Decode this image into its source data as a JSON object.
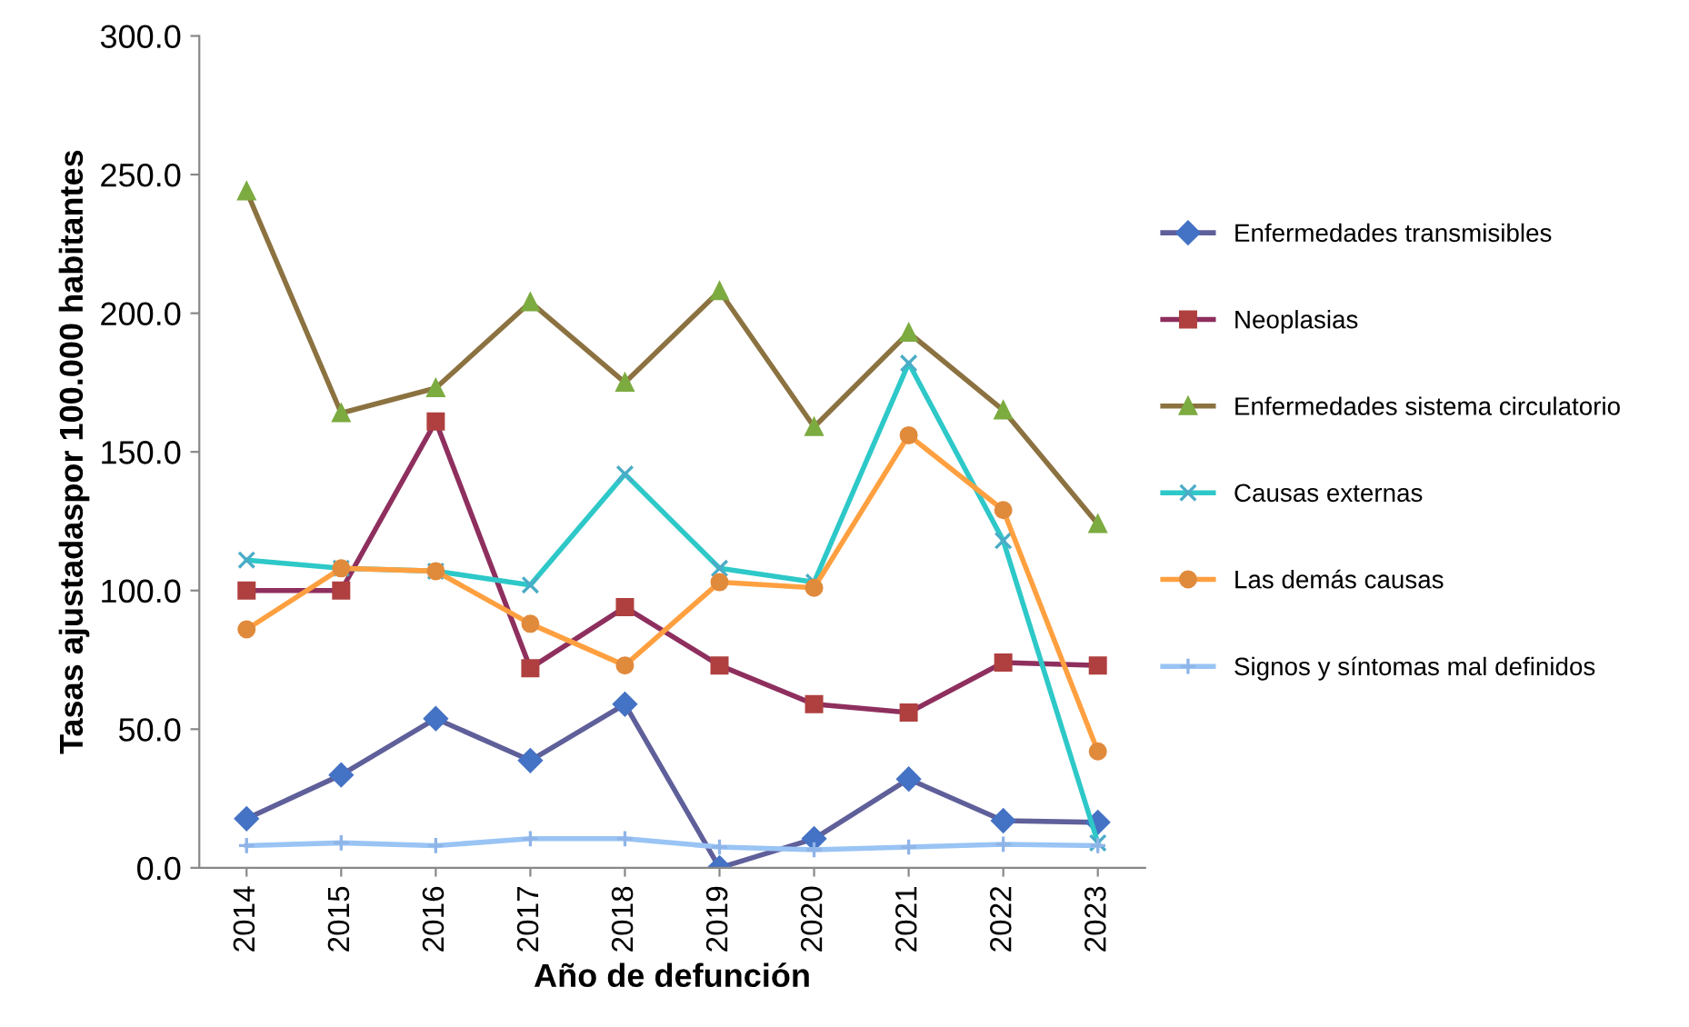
{
  "chart_data": {
    "type": "line",
    "xlabel": "Año de defunción",
    "ylabel": "Tasas ajustadaspor 100.000 habitantes",
    "categories": [
      "2014",
      "2015",
      "2016",
      "2017",
      "2018",
      "2019",
      "2020",
      "2021",
      "2022",
      "2023"
    ],
    "ylim": [
      0,
      300
    ],
    "yticks": [
      {
        "value": 0,
        "label": "0.0"
      },
      {
        "value": 50,
        "label": "50.0"
      },
      {
        "value": 100,
        "label": "100.0"
      },
      {
        "value": 150,
        "label": "150.0"
      },
      {
        "value": 200,
        "label": "200.0"
      },
      {
        "value": 250,
        "label": "250.0"
      },
      {
        "value": 300,
        "label": "300.0"
      }
    ],
    "grid": false,
    "legend": "right",
    "line_style": "solid",
    "series": [
      {
        "name": "Enfermedades transmisibles",
        "color": "#5f5f9a",
        "marker": "diamond",
        "values": [
          17.7,
          33.5,
          53.8,
          38.7,
          59,
          0,
          10.5,
          32,
          17,
          16.4
        ]
      },
      {
        "name": "Neoplasias",
        "color": "#8e2f5e",
        "marker": "square",
        "values": [
          100,
          100,
          161,
          72,
          94,
          73,
          59,
          56,
          74,
          73
        ]
      },
      {
        "name": "Enfermedades sistema circulatorio",
        "color": "#8b7240",
        "marker": "triangle",
        "values": [
          244,
          164,
          173,
          204,
          175,
          208,
          159,
          193,
          165,
          124
        ]
      },
      {
        "name": "Causas externas",
        "color": "#2ec8c8",
        "marker": "cross",
        "values": [
          111,
          108,
          107,
          102,
          142,
          108,
          103,
          182,
          118,
          9
        ]
      },
      {
        "name": "Las demás causas",
        "color": "#ffa040",
        "marker": "circle",
        "values": [
          86,
          108,
          107,
          88,
          73,
          103,
          101,
          156,
          129,
          42
        ]
      },
      {
        "name": "Signos y síntomas mal definidos",
        "color": "#99c4f4",
        "marker": "plus",
        "values": [
          8,
          9,
          8,
          10.5,
          10.5,
          7.5,
          6.5,
          7.5,
          8.5,
          8
        ]
      }
    ]
  }
}
